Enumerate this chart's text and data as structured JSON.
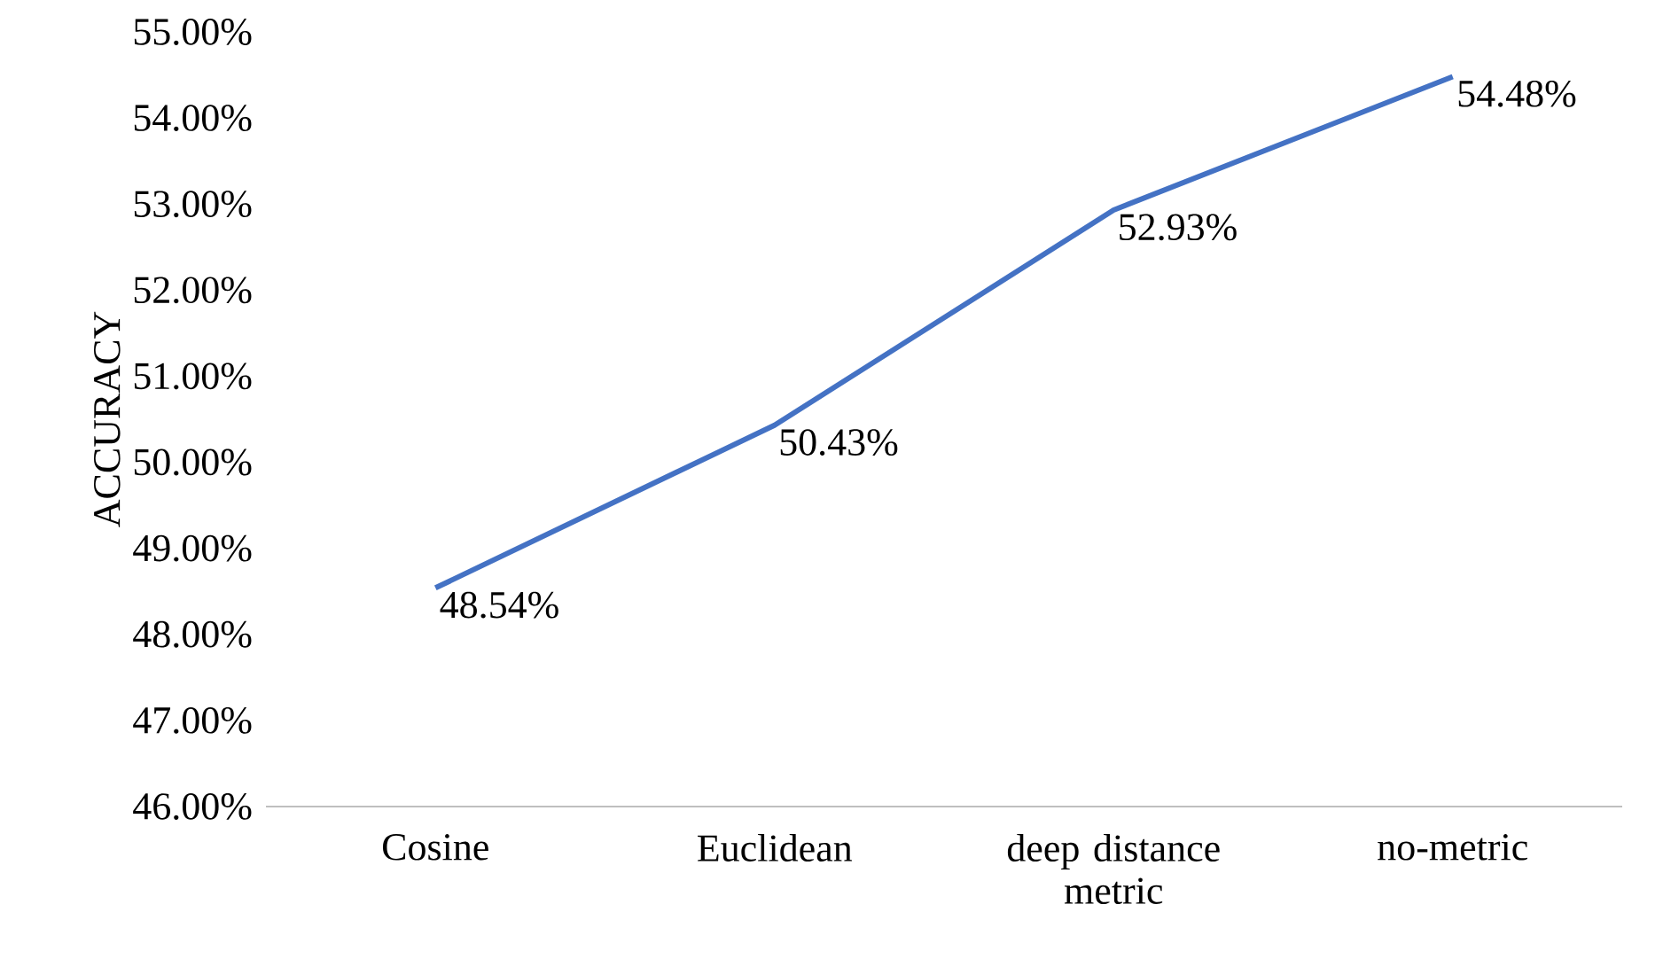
{
  "chart_data": {
    "type": "line",
    "ylabel": "ACCURACY",
    "categories": [
      "Cosine",
      "Euclidean",
      "deep distance metric",
      "no-metric"
    ],
    "series": [
      {
        "color": "#4472c4",
        "values": [
          48.54,
          50.43,
          52.93,
          54.48
        ],
        "value_labels": [
          "48.54%",
          "50.43%",
          "52.93%",
          "54.48%"
        ]
      }
    ],
    "ylim": [
      46,
      55
    ],
    "yticks": [
      {
        "value": 46,
        "label": "46.00%"
      },
      {
        "value": 47,
        "label": "47.00%"
      },
      {
        "value": 48,
        "label": "48.00%"
      },
      {
        "value": 49,
        "label": "49.00%"
      },
      {
        "value": 50,
        "label": "50.00%"
      },
      {
        "value": 51,
        "label": "51.00%"
      },
      {
        "value": 52,
        "label": "52.00%"
      },
      {
        "value": 53,
        "label": "53.00%"
      },
      {
        "value": 54,
        "label": "54.00%"
      },
      {
        "value": 55,
        "label": "55.00%"
      }
    ],
    "grid": false,
    "legend": false,
    "marker": "none",
    "line_style": "solid"
  }
}
